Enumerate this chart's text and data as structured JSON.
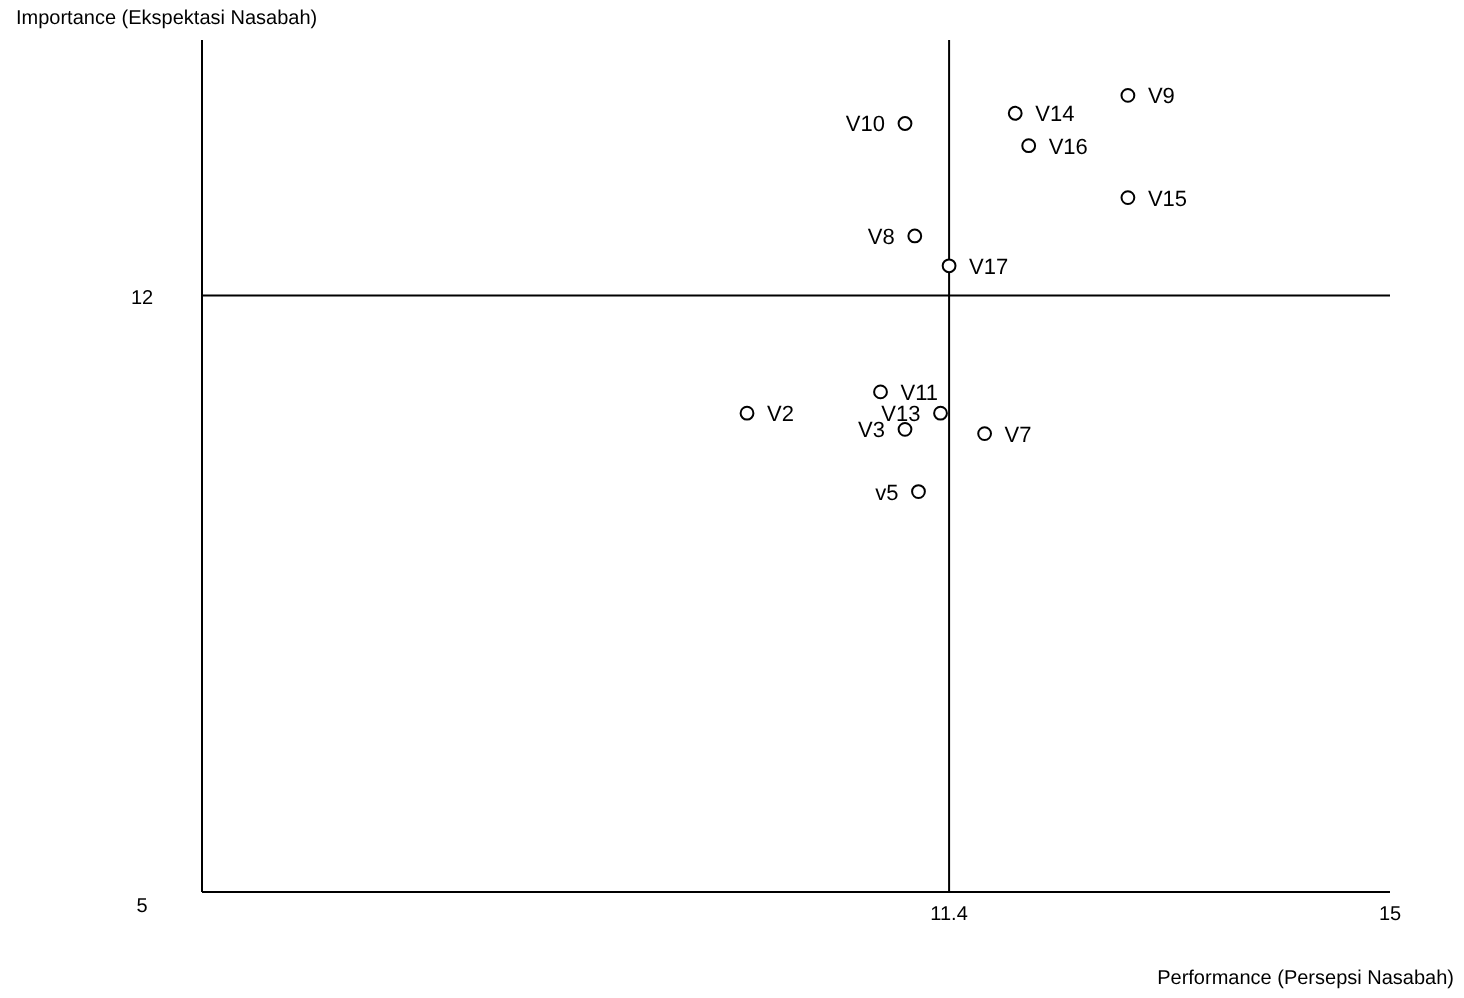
{
  "chart_data": {
    "type": "scatter",
    "xlabel": "Performance (Persepsi Nasabah)",
    "ylabel": "Importance (Ekspektasi Nasabah)",
    "x": [
      12.86,
      11.94,
      11.04,
      12.05,
      12.86,
      11.12,
      11.4,
      10.84,
      9.75,
      11.33,
      11.04,
      11.69,
      11.15
    ],
    "values": [
      14.35,
      14.14,
      14.02,
      13.76,
      13.15,
      12.7,
      12.35,
      10.87,
      10.62,
      10.62,
      10.43,
      10.38,
      9.7
    ],
    "color": "#000000",
    "marker": "circle",
    "xlim": [
      5.3,
      15
    ],
    "xticks": [
      11.4,
      15
    ],
    "ylim": [
      5,
      15
    ],
    "yticks": [
      5,
      12
    ],
    "grid": false,
    "ref_lines": [
      {
        "axis": "x",
        "value": 11.4
      },
      {
        "axis": "y",
        "value": 12
      }
    ],
    "annotations": [
      {
        "text": "V9",
        "x": 12.86,
        "y": 14.35
      },
      {
        "text": "V14",
        "x": 11.94,
        "y": 14.14
      },
      {
        "text": "V10",
        "x": 11.04,
        "y": 14.02
      },
      {
        "text": "V16",
        "x": 12.05,
        "y": 13.76
      },
      {
        "text": "V15",
        "x": 12.86,
        "y": 13.15
      },
      {
        "text": "V8",
        "x": 11.12,
        "y": 12.7
      },
      {
        "text": "V17",
        "x": 11.4,
        "y": 12.35
      },
      {
        "text": "V11",
        "x": 10.84,
        "y": 10.87
      },
      {
        "text": "V2",
        "x": 9.75,
        "y": 10.62
      },
      {
        "text": "V13",
        "x": 11.33,
        "y": 10.62
      },
      {
        "text": "V3",
        "x": 11.04,
        "y": 10.43
      },
      {
        "text": "V7",
        "x": 11.69,
        "y": 10.38
      },
      {
        "text": "v5",
        "x": 11.15,
        "y": 9.7
      }
    ]
  }
}
